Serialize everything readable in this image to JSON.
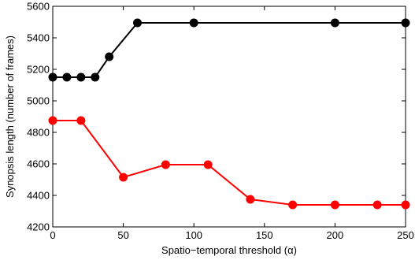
{
  "chart_data": {
    "type": "line",
    "title": "",
    "xlabel": "Spatio−temporal threshold (α)",
    "ylabel": "Synopsis length (number of frames)",
    "xlim": [
      0,
      250
    ],
    "ylim": [
      4200,
      5600
    ],
    "x_ticks": [
      0,
      50,
      100,
      150,
      200,
      250
    ],
    "y_ticks": [
      4200,
      4400,
      4600,
      4800,
      5000,
      5200,
      5400,
      5600
    ],
    "grid": false,
    "legend": "none",
    "series": [
      {
        "color": "#000000",
        "x": [
          0,
          10,
          20,
          30,
          40,
          60,
          100,
          200,
          250
        ],
        "y": [
          5150,
          5150,
          5150,
          5150,
          5280,
          5495,
          5495,
          5495,
          5495
        ]
      },
      {
        "color": "#ff0000",
        "x": [
          0,
          20,
          50,
          80,
          110,
          140,
          170,
          200,
          230,
          250
        ],
        "y": [
          4875,
          4875,
          4515,
          4595,
          4595,
          4375,
          4340,
          4340,
          4340,
          4340
        ]
      }
    ]
  }
}
